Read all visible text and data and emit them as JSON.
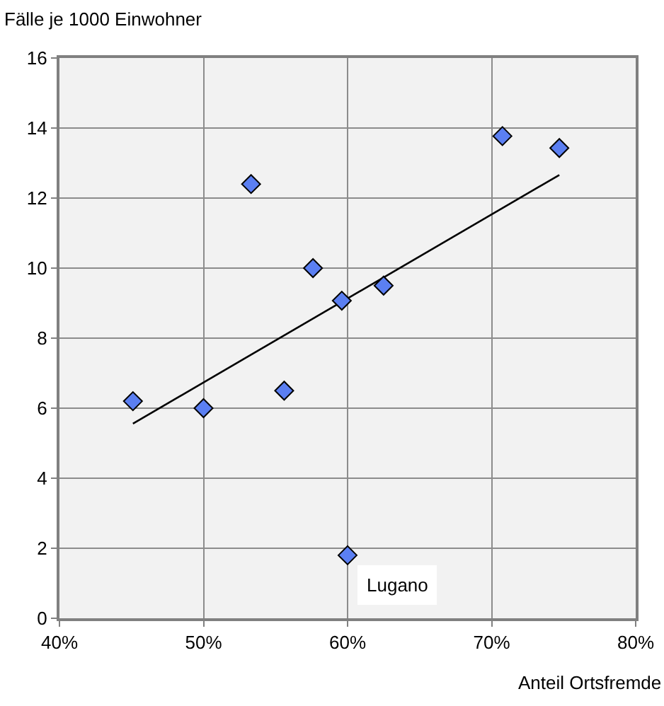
{
  "chart_data": {
    "type": "scatter",
    "xlabel": "Anteil Ortsfremde",
    "ylabel": "Fälle je 1000 Einwohner",
    "series": [
      {
        "color": "#5b7ff2",
        "marker": "diamond",
        "x": [
          45.1,
          50,
          53.3,
          55.6,
          57.6,
          59.6,
          60,
          62.5,
          70.75,
          74.7
        ],
        "values": [
          6.2,
          6.0,
          12.4,
          6.5,
          10.0,
          9.07,
          1.8,
          9.5,
          13.77,
          13.43
        ]
      },
      {
        "type": "line",
        "marker": "none",
        "color": "#000000",
        "x": [
          45.1,
          74.7
        ],
        "values": [
          5.56,
          12.66
        ]
      }
    ],
    "annotations": [
      {
        "text": "Lugano",
        "x": 60,
        "y": 1.8
      }
    ],
    "xlim": [
      40,
      80
    ],
    "xticks": [
      {
        "value": 40,
        "label": "40%"
      },
      {
        "value": 50,
        "label": "50%"
      },
      {
        "value": 60,
        "label": "60%"
      },
      {
        "value": 70,
        "label": "70%"
      },
      {
        "value": 80,
        "label": "80%"
      }
    ],
    "ylim": [
      0,
      16
    ],
    "yticks": [
      0,
      2,
      4,
      6,
      8,
      10,
      12,
      14,
      16
    ],
    "grid": true,
    "line_style": "solid"
  }
}
